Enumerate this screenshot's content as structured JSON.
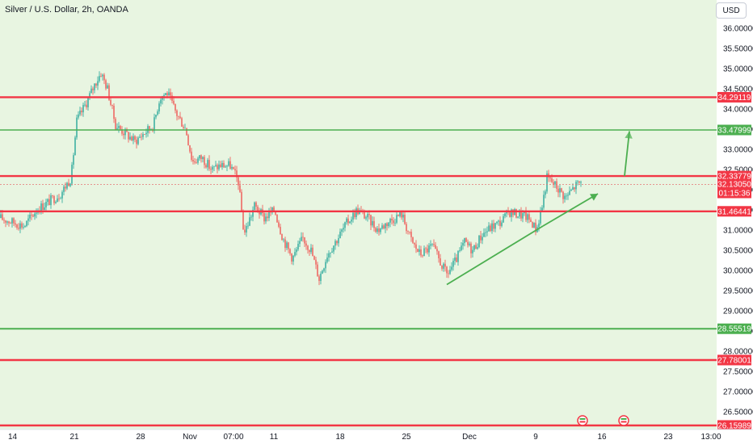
{
  "header": {
    "title": "Silver / U.S. Dollar, 2h, OANDA",
    "currency_button": "USD"
  },
  "colors": {
    "up": "#26a69a",
    "down": "#ef5350",
    "resistance": "#f23645",
    "support": "#4caf50",
    "plot_bg": "#e8f5e1",
    "price_line": "#e57373"
  },
  "chart_data": {
    "type": "candlestick",
    "title": "Silver / U.S. Dollar, 2h, OANDA",
    "ylim": [
      26.0,
      36.7
    ],
    "y_ticks": [
      "36.00000",
      "35.50000",
      "35.00000",
      "34.50000",
      "34.00000",
      "33.50000",
      "33.00000",
      "32.50000",
      "32.00000",
      "31.50000",
      "31.00000",
      "30.50000",
      "30.00000",
      "29.50000",
      "29.00000",
      "28.50000",
      "28.00000",
      "27.50000",
      "27.00000",
      "26.50000"
    ],
    "x_ticks": [
      "14",
      "21",
      "28",
      "Nov",
      "07:00",
      "11",
      "18",
      "25",
      "Dec",
      "9",
      "16",
      "23",
      "13:00"
    ],
    "horizontal_levels": [
      {
        "price": 34.29119,
        "label": "34.29119",
        "color": "#f23645",
        "kind": "resistance"
      },
      {
        "price": 33.47999,
        "label": "33.47999",
        "color": "#4caf50",
        "kind": "target"
      },
      {
        "price": 32.33779,
        "label": "32.33779",
        "color": "#f23645",
        "kind": "resistance"
      },
      {
        "price": 31.46441,
        "label": "31.46441",
        "color": "#f23645",
        "kind": "support"
      },
      {
        "price": 28.55519,
        "label": "28.55519",
        "color": "#4caf50",
        "kind": "support"
      },
      {
        "price": 27.78001,
        "label": "27.78001",
        "color": "#f23645",
        "kind": "support"
      },
      {
        "price": 26.15989,
        "label": "26.15989",
        "color": "#f23645",
        "kind": "support"
      }
    ],
    "current_price": {
      "value": "32.13050",
      "countdown": "01:15:36"
    },
    "price_path": [
      [
        0,
        31.3
      ],
      [
        30,
        31.1
      ],
      [
        45,
        31.5
      ],
      [
        60,
        31.7
      ],
      [
        75,
        31.9
      ],
      [
        88,
        32.3
      ],
      [
        95,
        33.7
      ],
      [
        108,
        34.2
      ],
      [
        117,
        34.6
      ],
      [
        125,
        34.9
      ],
      [
        133,
        34.5
      ],
      [
        143,
        33.6
      ],
      [
        155,
        33.4
      ],
      [
        167,
        33.2
      ],
      [
        178,
        33.4
      ],
      [
        190,
        33.6
      ],
      [
        198,
        34.3
      ],
      [
        207,
        34.4
      ],
      [
        218,
        33.9
      ],
      [
        230,
        33.5
      ],
      [
        238,
        32.7
      ],
      [
        250,
        32.8
      ],
      [
        262,
        32.5
      ],
      [
        272,
        32.6
      ],
      [
        285,
        32.6
      ],
      [
        295,
        32.2
      ],
      [
        302,
        30.9
      ],
      [
        315,
        31.6
      ],
      [
        327,
        31.3
      ],
      [
        340,
        31.5
      ],
      [
        350,
        30.8
      ],
      [
        362,
        30.3
      ],
      [
        375,
        30.8
      ],
      [
        385,
        30.5
      ],
      [
        395,
        29.8
      ],
      [
        405,
        30.4
      ],
      [
        418,
        30.8
      ],
      [
        430,
        31.2
      ],
      [
        442,
        31.5
      ],
      [
        455,
        31.3
      ],
      [
        468,
        31.0
      ],
      [
        480,
        31.2
      ],
      [
        497,
        31.4
      ],
      [
        510,
        30.7
      ],
      [
        520,
        30.4
      ],
      [
        535,
        30.6
      ],
      [
        545,
        30.2
      ],
      [
        553,
        29.9
      ],
      [
        563,
        30.2
      ],
      [
        575,
        30.7
      ],
      [
        585,
        30.5
      ],
      [
        597,
        30.9
      ],
      [
        610,
        31.1
      ],
      [
        620,
        31.2
      ],
      [
        630,
        31.45
      ],
      [
        640,
        31.4
      ],
      [
        650,
        31.35
      ],
      [
        658,
        31.2
      ],
      [
        664,
        31.0
      ],
      [
        671,
        31.6
      ],
      [
        677,
        32.3
      ],
      [
        688,
        32.1
      ],
      [
        700,
        31.8
      ],
      [
        712,
        32.1
      ],
      [
        720,
        32.2
      ]
    ],
    "annotations": [
      {
        "type": "trendline",
        "from": [
          553,
          29.65
        ],
        "to": [
          672,
          31.1
        ],
        "color": "#4caf50"
      },
      {
        "type": "arrow",
        "from": [
          672,
          31.1
        ],
        "to": [
          740,
          31.9
        ],
        "color": "#4caf50"
      },
      {
        "type": "arrow",
        "from": [
          773,
          32.34
        ],
        "to": [
          779,
          33.45
        ],
        "color": "#4caf50"
      }
    ],
    "event_markers": 2
  }
}
